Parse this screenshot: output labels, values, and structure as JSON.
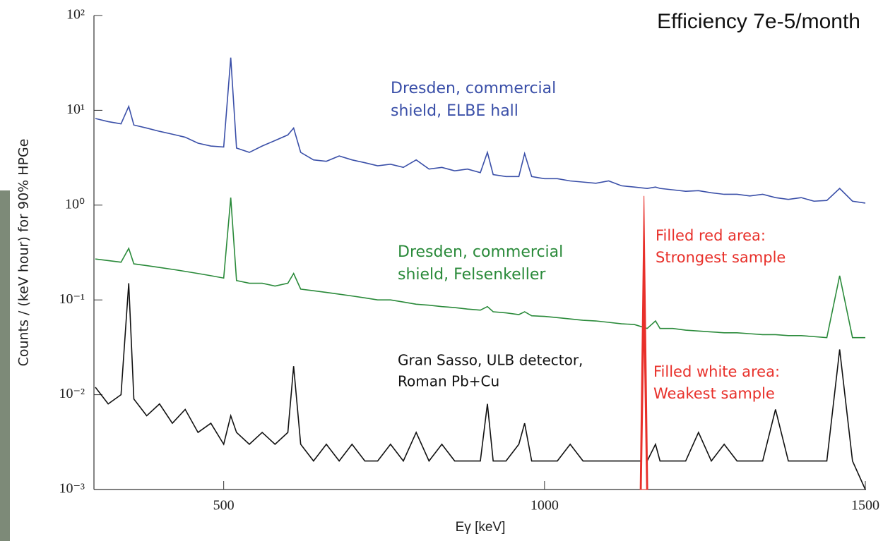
{
  "chart_data": {
    "type": "line",
    "title": "Efficiency 7e-5/month",
    "x_label": "Eγ [keV]",
    "y_label": "Counts / (keV hour) for 90% HPGe",
    "log_y": true,
    "xlim": [
      300,
      1500
    ],
    "xticks": [
      500,
      1000,
      1500
    ],
    "ylim": [
      0.001,
      100
    ],
    "yticks": [
      {
        "value": 100,
        "label": "10²"
      },
      {
        "value": 10,
        "label": "10¹"
      },
      {
        "value": 1,
        "label": "10⁰"
      },
      {
        "value": 0.1,
        "label": "10⁻¹"
      },
      {
        "value": 0.01,
        "label": "10⁻²"
      },
      {
        "value": 0.001,
        "label": "10⁻³"
      }
    ],
    "x": [
      300,
      320,
      340,
      352,
      360,
      380,
      400,
      420,
      440,
      460,
      480,
      500,
      511,
      520,
      540,
      560,
      580,
      600,
      609,
      620,
      640,
      660,
      680,
      700,
      720,
      740,
      760,
      780,
      800,
      820,
      840,
      860,
      880,
      900,
      911,
      920,
      940,
      960,
      969,
      980,
      1000,
      1020,
      1040,
      1060,
      1080,
      1100,
      1120,
      1140,
      1160,
      1173,
      1180,
      1200,
      1220,
      1240,
      1260,
      1280,
      1300,
      1320,
      1340,
      1360,
      1380,
      1400,
      1420,
      1440,
      1460,
      1480,
      1500
    ],
    "series": [
      {
        "color": "#3a4fa8",
        "values": [
          8.2,
          7.6,
          7.2,
          11,
          7.0,
          6.5,
          6.0,
          5.6,
          5.2,
          4.5,
          4.2,
          4.1,
          36,
          4.0,
          3.6,
          4.2,
          4.8,
          5.5,
          6.5,
          3.6,
          3.0,
          2.9,
          3.3,
          3.0,
          2.8,
          2.6,
          2.7,
          2.5,
          3.0,
          2.4,
          2.5,
          2.3,
          2.4,
          2.2,
          3.6,
          2.1,
          2.0,
          2.0,
          3.5,
          2.0,
          1.9,
          1.9,
          1.8,
          1.75,
          1.7,
          1.8,
          1.6,
          1.55,
          1.5,
          1.55,
          1.5,
          1.45,
          1.4,
          1.42,
          1.35,
          1.3,
          1.3,
          1.25,
          1.3,
          1.2,
          1.15,
          1.2,
          1.1,
          1.12,
          1.5,
          1.1,
          1.05
        ]
      },
      {
        "color": "#2a8a3a",
        "values": [
          0.27,
          0.26,
          0.25,
          0.35,
          0.24,
          0.23,
          0.22,
          0.21,
          0.2,
          0.19,
          0.18,
          0.17,
          1.2,
          0.16,
          0.15,
          0.15,
          0.14,
          0.15,
          0.19,
          0.13,
          0.125,
          0.12,
          0.115,
          0.11,
          0.105,
          0.1,
          0.1,
          0.095,
          0.09,
          0.088,
          0.085,
          0.083,
          0.08,
          0.078,
          0.085,
          0.075,
          0.073,
          0.07,
          0.075,
          0.068,
          0.067,
          0.065,
          0.063,
          0.061,
          0.06,
          0.058,
          0.056,
          0.055,
          0.05,
          0.06,
          0.05,
          0.05,
          0.048,
          0.047,
          0.046,
          0.045,
          0.045,
          0.044,
          0.043,
          0.043,
          0.042,
          0.042,
          0.041,
          0.04,
          0.18,
          0.04,
          0.04
        ]
      },
      {
        "color": "#111111",
        "values": [
          0.012,
          0.008,
          0.01,
          0.15,
          0.009,
          0.006,
          0.008,
          0.005,
          0.007,
          0.004,
          0.005,
          0.003,
          0.006,
          0.004,
          0.003,
          0.004,
          0.003,
          0.004,
          0.02,
          0.003,
          0.002,
          0.003,
          0.002,
          0.003,
          0.002,
          0.002,
          0.003,
          0.002,
          0.004,
          0.002,
          0.003,
          0.002,
          0.002,
          0.002,
          0.008,
          0.002,
          0.002,
          0.003,
          0.005,
          0.002,
          0.002,
          0.002,
          0.003,
          0.002,
          0.002,
          0.002,
          0.002,
          0.002,
          0.002,
          0.003,
          0.002,
          0.002,
          0.002,
          0.004,
          0.002,
          0.003,
          0.002,
          0.002,
          0.002,
          0.007,
          0.002,
          0.002,
          0.002,
          0.002,
          0.03,
          0.002,
          0.001
        ]
      }
    ],
    "areas": [
      {
        "color": "#e8302a",
        "x": [
          1149,
          1155,
          1161
        ],
        "values": [
          0.001,
          1.25,
          0.001
        ]
      },
      {
        "color": "#ffffff",
        "x": [
          1151,
          1155,
          1159
        ],
        "values": [
          0.001,
          0.05,
          0.001
        ]
      }
    ],
    "annotations": [
      {
        "color": "#3a4fa8",
        "lines": [
          "Dresden, commercial",
          "shield, ELBE hall"
        ]
      },
      {
        "color": "#2a8a3a",
        "lines": [
          "Dresden, commercial",
          "shield, Felsenkeller"
        ]
      },
      {
        "color": "#111111",
        "lines": [
          "Gran Sasso, ULB detector,",
          "Roman Pb+Cu"
        ]
      },
      {
        "color": "#e8302a",
        "lines": [
          "Filled red area:",
          "Strongest sample"
        ]
      },
      {
        "color": "#e8302a",
        "lines": [
          "Filled white area:",
          "Weakest sample"
        ]
      }
    ]
  }
}
